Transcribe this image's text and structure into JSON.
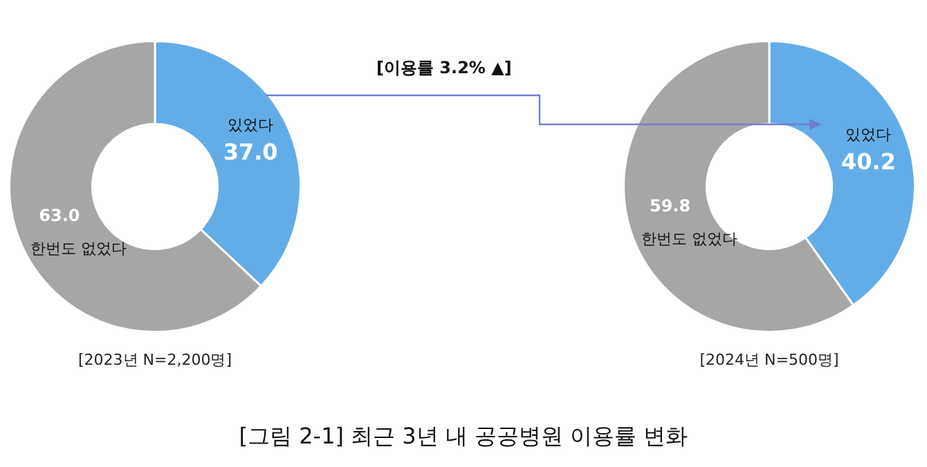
{
  "chart_data": [
    {
      "type": "donut",
      "subtitle": "[2023년 N=2,200명]",
      "categories": [
        "있었다",
        "한번도 없었다"
      ],
      "values": [
        37.0,
        63.0
      ],
      "value_labels": [
        "37.0",
        "63.0"
      ],
      "colors": [
        "#62ade8",
        "#a6a6a6"
      ],
      "legend": false
    },
    {
      "type": "donut",
      "subtitle": "[2024년 N=500명]",
      "categories": [
        "있었다",
        "한번도 없었다"
      ],
      "values": [
        40.2,
        59.8
      ],
      "value_labels": [
        "40.2",
        "59.8"
      ],
      "colors": [
        "#62ade8",
        "#a6a6a6"
      ],
      "legend": false,
      "annotations": [
        "[이용률 3.2% ▲]",
        "[그림 2-1] 최근 3년 내 공공병원 이용률 변화"
      ]
    }
  ]
}
